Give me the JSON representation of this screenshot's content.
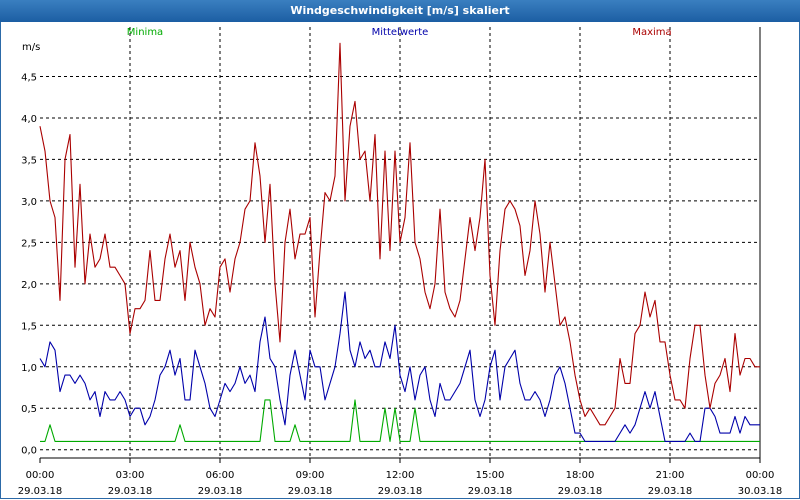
{
  "window": {
    "title": "Windgeschwindigkeit [m/s] skaliert"
  },
  "colors": {
    "minima": "#00aa00",
    "mittel": "#0000aa",
    "maxima": "#aa0000",
    "titlebar": "#1c5ea3"
  },
  "chart_data": {
    "type": "line",
    "ylabel": "m/s",
    "ylim": [
      -0.1,
      5.0
    ],
    "grid": true,
    "legend_placement": "top",
    "y_ticks": [
      {
        "value": 0.0,
        "label": "0,0"
      },
      {
        "value": 0.5,
        "label": "0,5"
      },
      {
        "value": 1.0,
        "label": "1,0"
      },
      {
        "value": 1.5,
        "label": "1,5"
      },
      {
        "value": 2.0,
        "label": "2,0"
      },
      {
        "value": 2.5,
        "label": "2,5"
      },
      {
        "value": 3.0,
        "label": "3,0"
      },
      {
        "value": 3.5,
        "label": "3,5"
      },
      {
        "value": 4.0,
        "label": "4,0"
      },
      {
        "value": 4.5,
        "label": "4,5"
      }
    ],
    "x_unit": "minutes since 29.03.18 00:00",
    "xlim": [
      0,
      1440
    ],
    "x_ticks": [
      {
        "value": 0,
        "time": "00:00",
        "date": "29.03.18"
      },
      {
        "value": 180,
        "time": "03:00",
        "date": "29.03.18"
      },
      {
        "value": 360,
        "time": "06:00",
        "date": "29.03.18"
      },
      {
        "value": 540,
        "time": "09:00",
        "date": "29.03.18"
      },
      {
        "value": 720,
        "time": "12:00",
        "date": "29.03.18"
      },
      {
        "value": 900,
        "time": "15:00",
        "date": "29.03.18"
      },
      {
        "value": 1080,
        "time": "18:00",
        "date": "29.03.18"
      },
      {
        "value": 1260,
        "time": "21:00",
        "date": "29.03.18"
      },
      {
        "value": 1440,
        "time": "00:00",
        "date": "30.03.18"
      }
    ],
    "series": [
      {
        "name": "Minima",
        "color": "#00aa00",
        "x": [
          0,
          10,
          20,
          30,
          270,
          280,
          290,
          440,
          450,
          460,
          470,
          480,
          500,
          510,
          520,
          580,
          590,
          600,
          620,
          630,
          640,
          650,
          670,
          680,
          690,
          700,
          710,
          720,
          740,
          750,
          760,
          1440
        ],
        "values": [
          0.1,
          0.1,
          0.3,
          0.1,
          0.1,
          0.3,
          0.1,
          0.1,
          0.6,
          0.6,
          0.1,
          0.1,
          0.1,
          0.3,
          0.1,
          0.1,
          0.1,
          0.1,
          0.1,
          0.6,
          0.1,
          0.1,
          0.1,
          0.1,
          0.5,
          0.1,
          0.5,
          0.1,
          0.1,
          0.5,
          0.1,
          0.1
        ]
      },
      {
        "name": "Mittelwerte",
        "color": "#0000aa",
        "x": [
          0,
          10,
          20,
          30,
          40,
          50,
          60,
          70,
          80,
          90,
          100,
          110,
          120,
          130,
          140,
          150,
          160,
          170,
          180,
          190,
          200,
          210,
          220,
          230,
          240,
          250,
          260,
          270,
          280,
          290,
          300,
          310,
          320,
          330,
          340,
          350,
          360,
          370,
          380,
          390,
          400,
          410,
          420,
          430,
          440,
          450,
          460,
          470,
          480,
          490,
          500,
          510,
          520,
          530,
          540,
          550,
          560,
          570,
          580,
          590,
          600,
          610,
          620,
          630,
          640,
          650,
          660,
          670,
          680,
          690,
          700,
          710,
          720,
          730,
          740,
          750,
          760,
          770,
          780,
          790,
          800,
          810,
          820,
          830,
          840,
          850,
          860,
          870,
          880,
          890,
          900,
          910,
          920,
          930,
          940,
          950,
          960,
          970,
          980,
          990,
          1000,
          1010,
          1020,
          1030,
          1040,
          1050,
          1060,
          1070,
          1080,
          1090,
          1100,
          1110,
          1120,
          1130,
          1140,
          1150,
          1160,
          1170,
          1180,
          1190,
          1200,
          1210,
          1220,
          1230,
          1240,
          1250,
          1260,
          1270,
          1280,
          1290,
          1300,
          1310,
          1320,
          1330,
          1340,
          1350,
          1360,
          1370,
          1380,
          1390,
          1400,
          1410,
          1420,
          1430,
          1440
        ],
        "values": [
          1.1,
          1.0,
          1.3,
          1.2,
          0.7,
          0.9,
          0.9,
          0.8,
          0.9,
          0.8,
          0.6,
          0.7,
          0.4,
          0.7,
          0.6,
          0.6,
          0.7,
          0.6,
          0.4,
          0.5,
          0.5,
          0.3,
          0.4,
          0.6,
          0.9,
          1.0,
          1.2,
          0.9,
          1.1,
          0.6,
          0.6,
          1.2,
          1.0,
          0.8,
          0.5,
          0.4,
          0.6,
          0.8,
          0.7,
          0.8,
          1.0,
          0.8,
          0.9,
          0.7,
          1.3,
          1.6,
          1.1,
          1.0,
          0.6,
          0.3,
          0.9,
          1.2,
          0.9,
          0.6,
          1.2,
          1.0,
          1.0,
          0.6,
          0.8,
          1.0,
          1.4,
          1.9,
          1.2,
          1.0,
          1.3,
          1.1,
          1.2,
          1.0,
          1.0,
          1.3,
          1.1,
          1.5,
          0.9,
          0.7,
          1.0,
          0.6,
          0.9,
          1.0,
          0.6,
          0.4,
          0.8,
          0.6,
          0.6,
          0.7,
          0.8,
          1.0,
          1.2,
          0.6,
          0.4,
          0.6,
          1.0,
          1.2,
          0.6,
          1.0,
          1.1,
          1.2,
          0.8,
          0.6,
          0.6,
          0.7,
          0.6,
          0.4,
          0.6,
          0.9,
          1.0,
          0.8,
          0.5,
          0.2,
          0.2,
          0.1,
          0.1,
          0.1,
          0.1,
          0.1,
          0.1,
          0.1,
          0.2,
          0.3,
          0.2,
          0.3,
          0.5,
          0.7,
          0.5,
          0.7,
          0.4,
          0.1,
          0.1,
          0.1,
          0.1,
          0.1,
          0.2,
          0.1,
          0.1,
          0.5,
          0.5,
          0.4,
          0.2,
          0.2,
          0.2,
          0.4,
          0.2,
          0.4,
          0.3,
          0.3,
          0.3
        ]
      },
      {
        "name": "Maxima",
        "color": "#aa0000",
        "x": [
          0,
          10,
          20,
          30,
          40,
          50,
          60,
          70,
          80,
          90,
          100,
          110,
          120,
          130,
          140,
          150,
          160,
          170,
          180,
          190,
          200,
          210,
          220,
          230,
          240,
          250,
          260,
          270,
          280,
          290,
          300,
          310,
          320,
          330,
          340,
          350,
          360,
          370,
          380,
          390,
          400,
          410,
          420,
          430,
          440,
          450,
          460,
          470,
          480,
          490,
          500,
          510,
          520,
          530,
          540,
          550,
          560,
          570,
          580,
          590,
          600,
          610,
          620,
          630,
          640,
          650,
          660,
          670,
          680,
          690,
          700,
          710,
          720,
          730,
          740,
          750,
          760,
          770,
          780,
          790,
          800,
          810,
          820,
          830,
          840,
          850,
          860,
          870,
          880,
          890,
          900,
          910,
          920,
          930,
          940,
          950,
          960,
          970,
          980,
          990,
          1000,
          1010,
          1020,
          1030,
          1040,
          1050,
          1060,
          1070,
          1080,
          1090,
          1100,
          1110,
          1120,
          1130,
          1140,
          1150,
          1160,
          1170,
          1180,
          1190,
          1200,
          1210,
          1220,
          1230,
          1240,
          1250,
          1260,
          1270,
          1280,
          1290,
          1300,
          1310,
          1320,
          1330,
          1340,
          1350,
          1360,
          1370,
          1380,
          1390,
          1400,
          1410,
          1420,
          1430,
          1440
        ],
        "values": [
          3.9,
          3.6,
          3.0,
          2.8,
          1.8,
          3.5,
          3.8,
          2.2,
          3.2,
          2.0,
          2.6,
          2.2,
          2.3,
          2.6,
          2.2,
          2.2,
          2.1,
          2.0,
          1.4,
          1.7,
          1.7,
          1.8,
          2.4,
          1.8,
          1.8,
          2.3,
          2.6,
          2.2,
          2.4,
          1.8,
          2.5,
          2.2,
          2.0,
          1.5,
          1.7,
          1.6,
          2.2,
          2.3,
          1.9,
          2.3,
          2.5,
          2.9,
          3.0,
          3.7,
          3.3,
          2.5,
          3.2,
          2.0,
          1.3,
          2.5,
          2.9,
          2.3,
          2.6,
          2.6,
          2.8,
          1.6,
          2.4,
          3.1,
          3.0,
          3.3,
          4.9,
          3.0,
          3.9,
          4.2,
          3.5,
          3.6,
          3.0,
          3.8,
          2.3,
          3.6,
          2.4,
          3.6,
          2.5,
          2.8,
          3.7,
          2.5,
          2.3,
          1.9,
          1.7,
          2.0,
          2.9,
          1.9,
          1.7,
          1.6,
          1.8,
          2.3,
          2.8,
          2.4,
          2.8,
          3.5,
          2.1,
          1.5,
          2.4,
          2.9,
          3.0,
          2.9,
          2.7,
          2.1,
          2.4,
          3.0,
          2.6,
          1.9,
          2.5,
          2.0,
          1.5,
          1.6,
          1.3,
          0.9,
          0.6,
          0.4,
          0.5,
          0.4,
          0.3,
          0.3,
          0.4,
          0.5,
          1.1,
          0.8,
          0.8,
          1.4,
          1.5,
          1.9,
          1.6,
          1.8,
          1.3,
          1.3,
          0.9,
          0.6,
          0.6,
          0.5,
          1.1,
          1.5,
          1.5,
          0.9,
          0.5,
          0.8,
          0.9,
          1.1,
          0.7,
          1.4,
          0.9,
          1.1,
          1.1,
          1.0,
          1.0
        ]
      }
    ]
  }
}
